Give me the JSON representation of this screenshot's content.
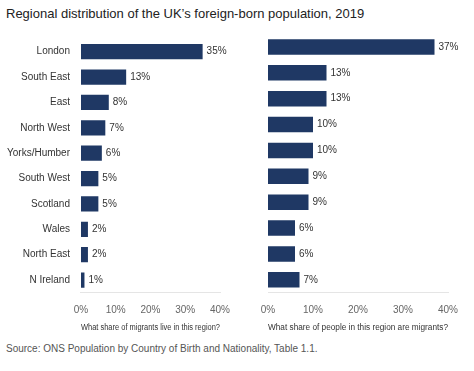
{
  "chart_data": [
    {
      "type": "bar",
      "orientation": "horizontal",
      "title": "Regional distribution of the UK’s foreign-born population, 2019",
      "annotations": [
        "Source: ONS Population by Country of Birth and Nationality, Table 1.1."
      ],
      "categories": [
        "London",
        "South East",
        "East",
        "North West",
        "Yorks/Humber",
        "South West",
        "Scotland",
        "Wales",
        "North East",
        "N Ireland"
      ],
      "values": [
        35,
        13,
        8,
        7,
        6,
        5,
        5,
        2,
        2,
        1
      ],
      "value_labels": [
        "35%",
        "13%",
        "8%",
        "7%",
        "6%",
        "5%",
        "5%",
        "2%",
        "2%",
        "1%"
      ],
      "data_labels": true,
      "color": "#1f3864",
      "xlabel": "What share of migrants live in this region?",
      "xlim": [
        0,
        40
      ],
      "xticks": [
        {
          "value": 0,
          "label": "0%"
        },
        {
          "value": 10,
          "label": "10%"
        },
        {
          "value": 20,
          "label": "20%"
        },
        {
          "value": 30,
          "label": "30%"
        },
        {
          "value": 40,
          "label": "40%"
        }
      ],
      "grid": false
    },
    {
      "type": "bar",
      "orientation": "horizontal",
      "categories": [
        "London",
        "South East",
        "East",
        "North West",
        "Yorks/Humber",
        "South West",
        "Scotland",
        "Wales",
        "North East",
        "N Ireland"
      ],
      "values": [
        37,
        13,
        13,
        10,
        10,
        9,
        9,
        6,
        6,
        7
      ],
      "value_labels": [
        "37%",
        "13%",
        "13%",
        "10%",
        "10%",
        "9%",
        "9%",
        "6%",
        "6%",
        "7%"
      ],
      "data_labels": true,
      "color": "#1f3864",
      "xlabel": "What share of people in this region are migrants?",
      "xlim": [
        0,
        40
      ],
      "xticks": [
        {
          "value": 0,
          "label": "0%"
        },
        {
          "value": 10,
          "label": "10%"
        },
        {
          "value": 20,
          "label": "20%"
        },
        {
          "value": 30,
          "label": "30%"
        },
        {
          "value": 40,
          "label": "40%"
        }
      ],
      "grid": false,
      "tick_labels": "x"
    }
  ]
}
